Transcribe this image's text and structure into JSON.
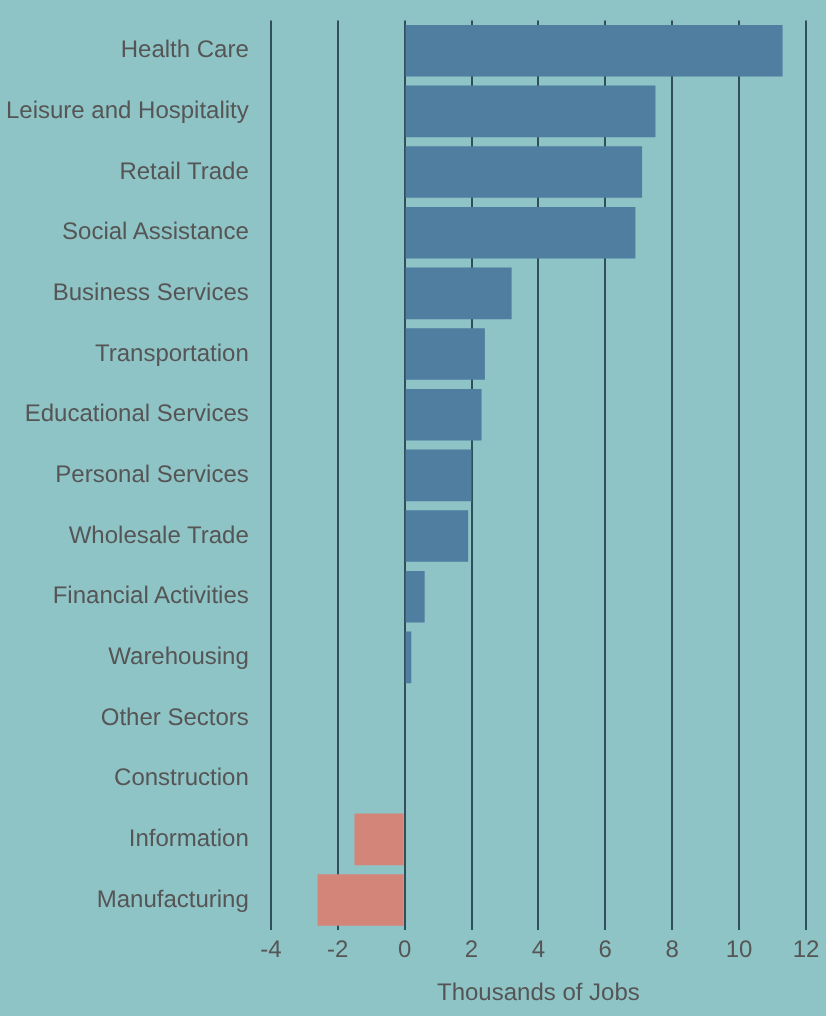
{
  "chart_data": {
    "type": "bar",
    "orientation": "horizontal",
    "xlabel": "Thousands of Jobs",
    "categories": [
      "Health Care",
      "Leisure and Hospitality",
      "Retail Trade",
      "Social Assistance",
      "Business Services",
      "Transportation",
      "Educational Services",
      "Personal Services",
      "Wholesale Trade",
      "Financial Activities",
      "Warehousing",
      "Other Sectors",
      "Construction",
      "Information",
      "Manufacturing"
    ],
    "values": [
      11.3,
      7.5,
      7.1,
      6.9,
      3.2,
      2.4,
      2.3,
      2.0,
      1.9,
      0.6,
      0.2,
      null,
      0,
      -1.5,
      -2.6
    ],
    "colors": [
      "#4f7ea0",
      "#4f7ea0",
      "#4f7ea0",
      "#4f7ea0",
      "#4f7ea0",
      "#4f7ea0",
      "#4f7ea0",
      "#4f7ea0",
      "#4f7ea0",
      "#4f7ea0",
      "#4f7ea0",
      "#4f7ea0",
      "#4f7ea0",
      "#d4857a",
      "#d4857a"
    ],
    "xlim": [
      -4,
      12
    ],
    "xticks": [
      -4,
      -2,
      0,
      2,
      4,
      6,
      8,
      10,
      12
    ],
    "grid": "x"
  }
}
